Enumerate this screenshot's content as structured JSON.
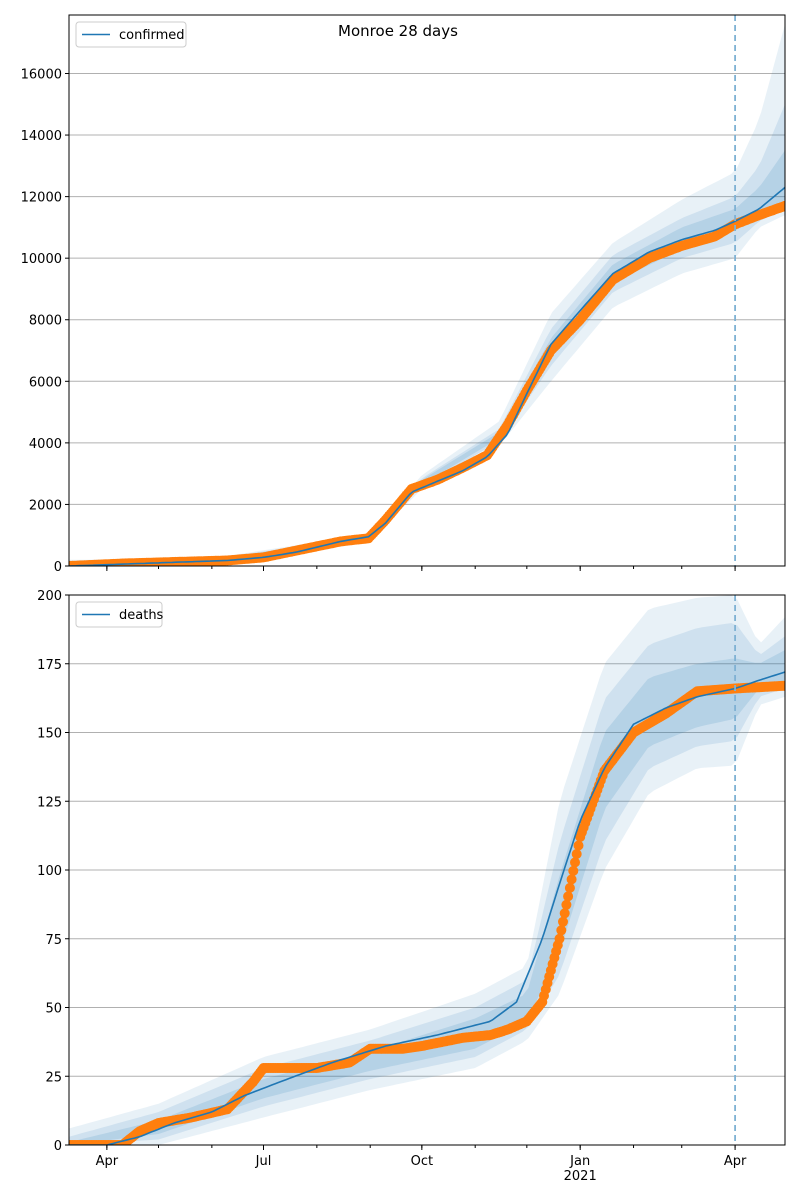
{
  "figure": {
    "title": "Monroe 28 days"
  },
  "chart_data": [
    {
      "type": "line",
      "panel": "top",
      "legend": {
        "position": "upper-left",
        "entries": [
          "confirmed"
        ]
      },
      "x_axis": {
        "range": [
          "2020-03-10",
          "2021-04-30"
        ],
        "tick_labels": [
          "Apr",
          "Jul",
          "Oct",
          "Jan\n2021",
          "Apr"
        ],
        "tick_dates": [
          "2020-04-01",
          "2020-07-01",
          "2020-10-01",
          "2021-01-01",
          "2021-04-01"
        ],
        "tick_labels_visible": false
      },
      "y_axis": {
        "range": [
          0,
          17900
        ],
        "ticks": [
          0,
          2000,
          4000,
          6000,
          8000,
          10000,
          12000,
          14000,
          16000
        ]
      },
      "grid": "horizontal",
      "forecast_start": "2021-04-01",
      "colors": {
        "model_line": "#1f77b4",
        "observed": "#ff7f0e",
        "band": "#1f77b4",
        "forecast_line": "#7fb1d3"
      },
      "series": [
        {
          "name": "confirmed",
          "kind": "model",
          "x": [
            "2020-03-10",
            "2020-04-10",
            "2020-05-10",
            "2020-06-10",
            "2020-07-01",
            "2020-07-20",
            "2020-08-15",
            "2020-08-31",
            "2020-09-10",
            "2020-09-25",
            "2020-10-10",
            "2020-10-25",
            "2020-11-08",
            "2020-11-20",
            "2020-12-01",
            "2020-12-15",
            "2021-01-01",
            "2021-01-20",
            "2021-02-10",
            "2021-03-01",
            "2021-03-20",
            "2021-04-01",
            "2021-04-15",
            "2021-04-30"
          ],
          "y": [
            0,
            60,
            120,
            180,
            280,
            450,
            800,
            950,
            1400,
            2400,
            2750,
            3100,
            3550,
            4300,
            5600,
            7200,
            8300,
            9500,
            10200,
            10600,
            10900,
            11200,
            11600,
            12300
          ]
        },
        {
          "name": "confirmed (observed)",
          "kind": "observed",
          "x": [
            "2020-03-10",
            "2020-04-10",
            "2020-05-10",
            "2020-06-10",
            "2020-07-01",
            "2020-07-20",
            "2020-08-15",
            "2020-08-31",
            "2020-09-10",
            "2020-09-25",
            "2020-10-10",
            "2020-10-25",
            "2020-11-08",
            "2020-11-20",
            "2020-12-01",
            "2020-12-15",
            "2021-01-01",
            "2021-01-20",
            "2021-02-10",
            "2021-03-01",
            "2021-03-20",
            "2021-04-01",
            "2021-04-15",
            "2021-04-30"
          ],
          "y": [
            0,
            80,
            130,
            180,
            280,
            500,
            800,
            900,
            1500,
            2500,
            2800,
            3200,
            3600,
            4600,
            5700,
            7000,
            8000,
            9300,
            10000,
            10400,
            10700,
            11100,
            11400,
            11700
          ]
        }
      ],
      "bands": {
        "x": [
          "2020-03-10",
          "2020-06-01",
          "2020-09-01",
          "2020-10-01",
          "2020-11-15",
          "2020-12-15",
          "2021-01-20",
          "2021-03-01",
          "2021-04-01",
          "2021-04-15",
          "2021-04-30"
        ],
        "outer_low": [
          0,
          120,
          850,
          2500,
          3900,
          6000,
          8400,
          9500,
          10000,
          11000,
          11400
        ],
        "outer_high": [
          200,
          250,
          1050,
          2950,
          4700,
          8200,
          10500,
          11900,
          12800,
          14500,
          17600
        ],
        "middle_low": [
          0,
          140,
          900,
          2600,
          4050,
          6500,
          8900,
          10000,
          10500,
          11200,
          11600
        ],
        "middle_high": [
          150,
          220,
          1000,
          2850,
          4450,
          7700,
          10100,
          11300,
          12000,
          13000,
          15000
        ],
        "inner_low": [
          0,
          150,
          930,
          2650,
          4150,
          6900,
          9200,
          10300,
          10900,
          11400,
          11900
        ],
        "inner_high": [
          100,
          200,
          980,
          2800,
          4350,
          7400,
          9800,
          11000,
          11600,
          12300,
          13500
        ]
      }
    },
    {
      "type": "line",
      "panel": "bottom",
      "legend": {
        "position": "upper-left",
        "entries": [
          "deaths"
        ]
      },
      "x_axis": {
        "range": [
          "2020-03-10",
          "2021-04-30"
        ],
        "tick_labels": [
          "Apr",
          "Jul",
          "Oct",
          "Jan\n2021",
          "Apr"
        ],
        "tick_dates": [
          "2020-04-01",
          "2020-07-01",
          "2020-10-01",
          "2021-01-01",
          "2021-04-01"
        ]
      },
      "y_axis": {
        "range": [
          0,
          200
        ],
        "ticks": [
          0,
          25,
          50,
          75,
          100,
          125,
          150,
          175,
          200
        ]
      },
      "grid": "horizontal",
      "forecast_start": "2021-04-01",
      "colors": {
        "model_line": "#1f77b4",
        "observed": "#ff7f0e",
        "band": "#1f77b4",
        "forecast_line": "#7fb1d3"
      },
      "series": [
        {
          "name": "deaths",
          "kind": "model",
          "x": [
            "2020-03-10",
            "2020-04-01",
            "2020-04-20",
            "2020-05-10",
            "2020-06-01",
            "2020-06-20",
            "2020-07-15",
            "2020-08-10",
            "2020-09-10",
            "2020-10-10",
            "2020-11-10",
            "2020-11-25",
            "2020-12-10",
            "2020-12-20",
            "2021-01-01",
            "2021-01-15",
            "2021-02-01",
            "2021-02-20",
            "2021-03-10",
            "2021-04-01",
            "2021-04-15",
            "2021-04-30"
          ],
          "y": [
            0,
            0,
            3,
            8,
            12,
            18,
            24,
            30,
            36,
            40,
            45,
            52,
            75,
            95,
            118,
            137,
            153,
            159,
            163,
            166,
            169,
            172
          ]
        },
        {
          "name": "deaths (observed)",
          "kind": "observed",
          "x": [
            "2020-03-10",
            "2020-04-10",
            "2020-04-20",
            "2020-05-01",
            "2020-05-20",
            "2020-06-10",
            "2020-06-25",
            "2020-07-01",
            "2020-08-01",
            "2020-08-20",
            "2020-09-01",
            "2020-09-20",
            "2020-10-01",
            "2020-10-25",
            "2020-11-10",
            "2020-11-20",
            "2020-12-01",
            "2020-12-10",
            "2020-12-20",
            "2021-01-01",
            "2021-01-15",
            "2021-02-01",
            "2021-02-20",
            "2021-03-10",
            "2021-04-01",
            "2021-04-30"
          ],
          "y": [
            0,
            0,
            5,
            8,
            10,
            13,
            23,
            28,
            28,
            30,
            35,
            35,
            36,
            39,
            40,
            42,
            45,
            52,
            75,
            112,
            136,
            150,
            157,
            165,
            166,
            167
          ]
        }
      ],
      "bands": {
        "x": [
          "2020-03-10",
          "2020-05-01",
          "2020-07-01",
          "2020-09-01",
          "2020-11-01",
          "2020-12-01",
          "2020-12-20",
          "2021-01-15",
          "2021-02-10",
          "2021-03-10",
          "2021-04-01",
          "2021-04-15",
          "2021-04-30"
        ],
        "outer_low": [
          0,
          0,
          10,
          20,
          28,
          38,
          55,
          100,
          128,
          137,
          138,
          160,
          163
        ],
        "outer_high": [
          6,
          15,
          32,
          42,
          55,
          65,
          125,
          175,
          195,
          199,
          200,
          182,
          192
        ],
        "middle_low": [
          0,
          2,
          14,
          24,
          32,
          42,
          62,
          110,
          137,
          145,
          147,
          163,
          166
        ],
        "middle_high": [
          3,
          12,
          28,
          38,
          50,
          60,
          110,
          162,
          182,
          188,
          190,
          178,
          185
        ],
        "inner_low": [
          0,
          4,
          17,
          27,
          35,
          45,
          70,
          122,
          145,
          152,
          155,
          166,
          169
        ],
        "inner_high": [
          1,
          9,
          24,
          34,
          46,
          55,
          98,
          150,
          170,
          175,
          177,
          175,
          180
        ]
      }
    }
  ]
}
